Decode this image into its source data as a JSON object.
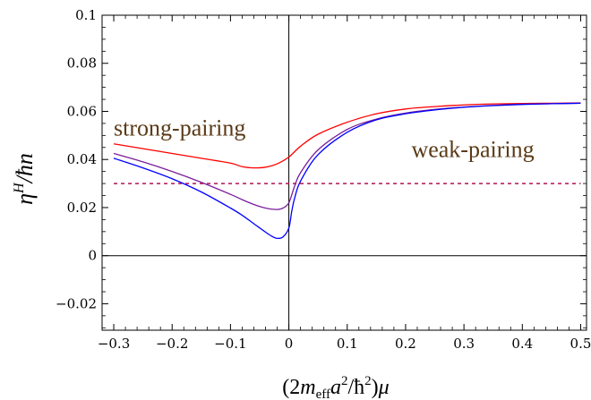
{
  "chart_data": {
    "type": "line",
    "xlabel": "(2m_eff a²/ħ²)μ",
    "ylabel": "η^H/ħn",
    "xlim": [
      -0.32,
      0.51
    ],
    "ylim": [
      -0.031,
      0.1
    ],
    "x_ticks": [
      -0.3,
      -0.2,
      -0.1,
      0,
      0.1,
      0.2,
      0.3,
      0.4,
      0.5
    ],
    "x_tick_labels": [
      "−0.3",
      "−0.2",
      "−0.1",
      "0",
      "0.1",
      "0.2",
      "0.3",
      "0.4",
      "0.5"
    ],
    "y_ticks": [
      -0.02,
      0,
      0.02,
      0.04,
      0.06,
      0.08,
      0.1
    ],
    "y_tick_labels": [
      "−0.02",
      "0",
      "0.02",
      "0.04",
      "0.06",
      "0.08",
      "0.1"
    ],
    "grid": false,
    "annotations": [
      {
        "text": "strong-pairing",
        "x": -0.3,
        "y": 0.05
      },
      {
        "text": "weak-pairing",
        "x": 0.21,
        "y": 0.041
      }
    ],
    "colors": {
      "red": "#ff0000",
      "purple": "#7a1f9a",
      "blue": "#0000ff",
      "dashed": "#b01050"
    },
    "series": [
      {
        "color": "#ff0000",
        "x": [
          -0.3,
          -0.25,
          -0.2,
          -0.15,
          -0.1,
          -0.08,
          -0.06,
          -0.04,
          -0.02,
          0,
          0.02,
          0.05,
          0.1,
          0.15,
          0.2,
          0.25,
          0.3,
          0.35,
          0.4,
          0.45,
          0.5
        ],
        "y": [
          0.0465,
          0.0445,
          0.0425,
          0.0405,
          0.0385,
          0.037,
          0.0365,
          0.0368,
          0.0382,
          0.041,
          0.0455,
          0.0505,
          0.0555,
          0.059,
          0.061,
          0.062,
          0.0627,
          0.0631,
          0.0633,
          0.0634,
          0.0635
        ]
      },
      {
        "color": "#7a1f9a",
        "x": [
          -0.3,
          -0.25,
          -0.2,
          -0.15,
          -0.1,
          -0.08,
          -0.06,
          -0.04,
          -0.02,
          -0.01,
          0,
          0.01,
          0.02,
          0.05,
          0.1,
          0.15,
          0.2,
          0.25,
          0.3,
          0.35,
          0.4,
          0.45,
          0.5
        ],
        "y": [
          0.0425,
          0.039,
          0.035,
          0.0305,
          0.0255,
          0.0233,
          0.0213,
          0.0198,
          0.0192,
          0.0198,
          0.022,
          0.029,
          0.0345,
          0.044,
          0.0525,
          0.0568,
          0.0593,
          0.0608,
          0.0618,
          0.0625,
          0.063,
          0.0632,
          0.0634
        ]
      },
      {
        "color": "#0000ff",
        "x": [
          -0.3,
          -0.25,
          -0.2,
          -0.15,
          -0.1,
          -0.08,
          -0.06,
          -0.04,
          -0.03,
          -0.02,
          -0.01,
          0,
          0.005,
          0.01,
          0.02,
          0.05,
          0.1,
          0.15,
          0.2,
          0.25,
          0.3,
          0.35,
          0.4,
          0.45,
          0.5
        ],
        "y": [
          0.0405,
          0.0365,
          0.032,
          0.0265,
          0.0198,
          0.0168,
          0.0133,
          0.0098,
          0.0082,
          0.0072,
          0.0078,
          0.0115,
          0.0185,
          0.024,
          0.031,
          0.042,
          0.0513,
          0.0565,
          0.059,
          0.0606,
          0.0617,
          0.0624,
          0.0629,
          0.0632,
          0.0634
        ]
      },
      {
        "color": "#b01050",
        "dashed": true,
        "x": [
          -0.3,
          0.5
        ],
        "y": [
          0.03,
          0.03
        ]
      }
    ]
  }
}
